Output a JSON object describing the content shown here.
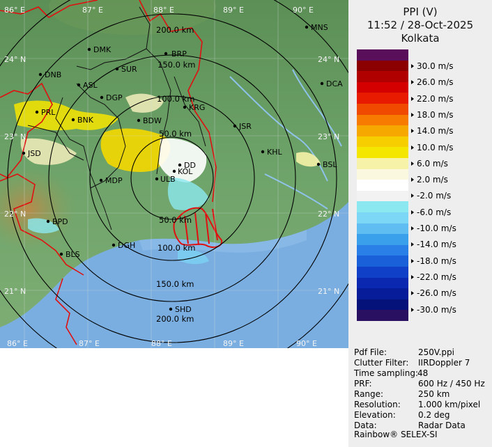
{
  "header": {
    "product": "PPI (V)",
    "datetime": "11:52 / 28-Oct-2025",
    "station": "Kolkata"
  },
  "scale": {
    "colors": [
      "#5a0f5a",
      "#8b0000",
      "#b00000",
      "#d40000",
      "#e81a00",
      "#f04a00",
      "#f77b00",
      "#f6a800",
      "#f7cf00",
      "#f5e600",
      "#f6f2a8",
      "#fbf8e0",
      "#ffffff",
      "#f2f2f2",
      "#8ce8f0",
      "#7cd6f5",
      "#5fbdf2",
      "#3aa0ec",
      "#2a80e6",
      "#1a60d8",
      "#1040c8",
      "#0a28b0",
      "#061c98",
      "#04127a",
      "#2a1060"
    ],
    "labels": [
      "30.0 m/s",
      "26.0 m/s",
      "22.0 m/s",
      "18.0 m/s",
      "14.0 m/s",
      "10.0 m/s",
      "6.0 m/s",
      "2.0 m/s",
      "-2.0 m/s",
      "-6.0 m/s",
      "-10.0 m/s",
      "-14.0 m/s",
      "-18.0 m/s",
      "-22.0 m/s",
      "-26.0 m/s",
      "-30.0 m/s"
    ]
  },
  "info": [
    {
      "key": "Pdf File:",
      "value": "250V.ppi"
    },
    {
      "key": "Clutter Filter:",
      "value": "IIRDoppler 7"
    },
    {
      "key": "Time sampling:",
      "value": "48"
    },
    {
      "key": "PRF:",
      "value": "600 Hz / 450 Hz"
    },
    {
      "key": "Range:",
      "value": "250 km"
    },
    {
      "key": "Resolution:",
      "value": "1.000 km/pixel"
    },
    {
      "key": "Elevation:",
      "value": "0.2 deg"
    },
    {
      "key": "Data:",
      "value": "Radar Data"
    }
  ],
  "footer": "Rainbow® SELEX-SI",
  "map": {
    "longitudes": [
      "86° E",
      "87° E",
      "88° E",
      "89° E",
      "90° E"
    ],
    "latitudes": [
      "24° N",
      "23° N",
      "22° N",
      "21° N"
    ],
    "range_labels": [
      "50.0 km",
      "100.0 km",
      "150.0 km",
      "200.0 km"
    ],
    "cities": [
      "MNS",
      "DMK",
      "BRP",
      "DNB",
      "SUR",
      "DCA",
      "ASL",
      "DGP",
      "KRG",
      "PRL",
      "BNK",
      "BDW",
      "JSR",
      "KHL",
      "JSD",
      "BSL",
      "DD",
      "KOL",
      "MDP",
      "ULB",
      "BPD",
      "DGH",
      "BLS",
      "SHD"
    ]
  },
  "colors": {
    "sea": "#7aaee0",
    "land": "#5e9a5e",
    "boundary": "#e01010",
    "rings": "#000000"
  }
}
